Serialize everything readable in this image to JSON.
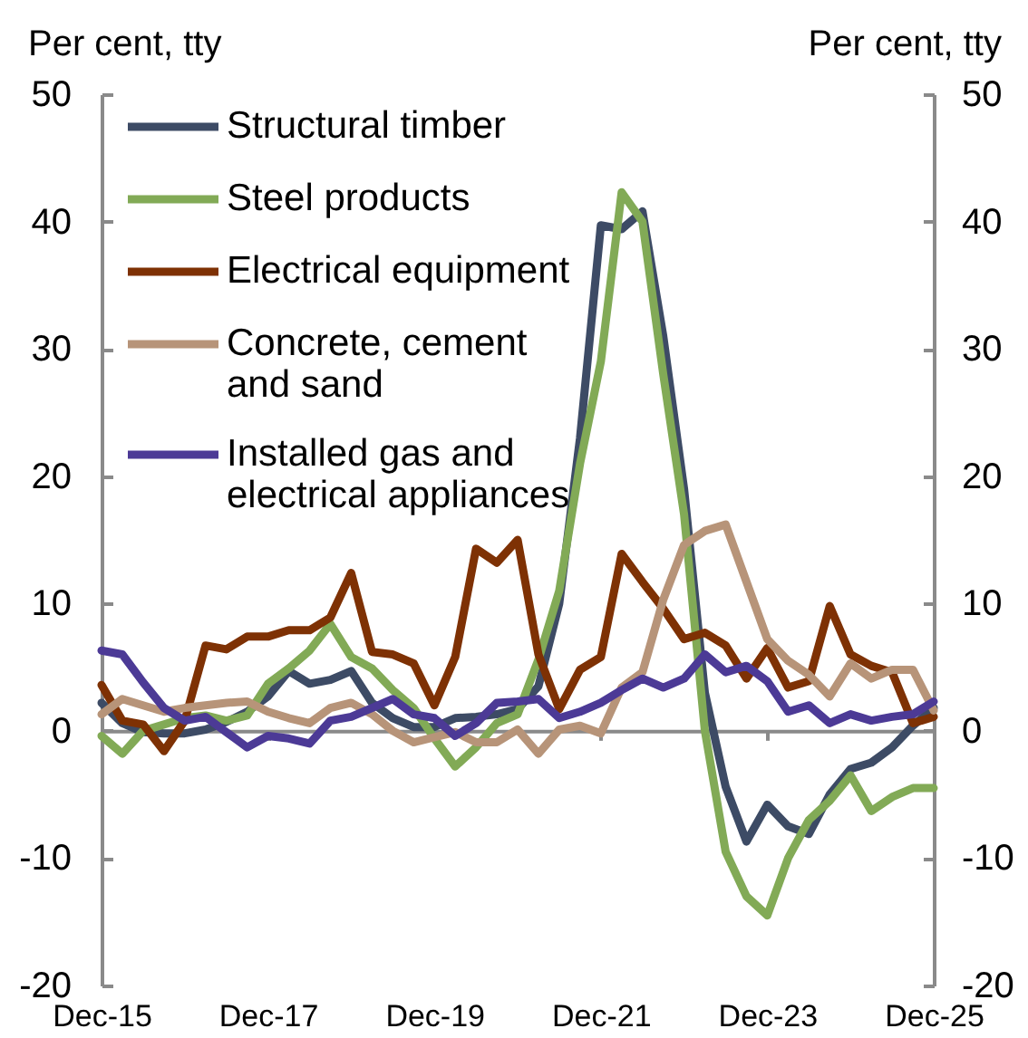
{
  "chart_data": {
    "type": "line",
    "ylabel": "Per cent, tty",
    "y2label": "Per cent, tty",
    "categories": [
      "Dec-15",
      null,
      null,
      null,
      null,
      null,
      null,
      null,
      "Dec-17",
      null,
      null,
      null,
      null,
      null,
      null,
      null,
      "Dec-19",
      null,
      null,
      null,
      null,
      null,
      null,
      null,
      "Dec-21",
      null,
      null,
      null,
      null,
      null,
      null,
      null,
      "Dec-23",
      null,
      null,
      null,
      null,
      null,
      null,
      null,
      "Dec-25"
    ],
    "series": [
      {
        "name": "Structural timber",
        "color": "#3d4b65",
        "values": [
          2.2,
          0.6,
          -0.1,
          -0.2,
          -0.2,
          0.1,
          0.7,
          1.5,
          2.7,
          4.7,
          3.7,
          4.0,
          4.7,
          2.2,
          1.0,
          0.3,
          0.3,
          1.0,
          1.1,
          1.3,
          1.7,
          3.5,
          10,
          23,
          39.7,
          39.4,
          40.8,
          31,
          19,
          3,
          -4.4,
          -8.7,
          -5.8,
          -7.5,
          -8.1,
          -5.0,
          -3.0,
          -2.5,
          -1.3,
          0.4,
          1.8
        ]
      },
      {
        "name": "Steel products",
        "color": "#82aa56",
        "values": [
          -0.4,
          -1.8,
          0.0,
          0.5,
          1.0,
          1.2,
          0.8,
          1.2,
          3.7,
          4.9,
          6.3,
          8.4,
          5.8,
          4.9,
          3.2,
          1.8,
          -0.6,
          -2.8,
          -1.3,
          0.6,
          1.3,
          5.6,
          11,
          21,
          29,
          42.3,
          40,
          28,
          17,
          0,
          -9.5,
          -13,
          -14.5,
          -10,
          -7,
          -5.5,
          -3.5,
          -6.3,
          -5.2,
          -4.5,
          -4.5
        ]
      },
      {
        "name": "Electrical equipment",
        "color": "#7e3104",
        "values": [
          3.6,
          0.8,
          0.5,
          -1.6,
          0.8,
          6.7,
          6.4,
          7.4,
          7.4,
          7.9,
          7.9,
          8.9,
          12.4,
          6.2,
          6.0,
          5.3,
          2.0,
          5.8,
          14.3,
          13.2,
          15.0,
          6.0,
          1.7,
          4.8,
          5.8,
          13.9,
          11.7,
          9.6,
          7.2,
          7.7,
          6.7,
          4.1,
          6.5,
          3.4,
          3.9,
          9.8,
          6.0,
          5.1,
          4.6,
          0.6,
          1.1
        ]
      },
      {
        "name": "Concrete, cement and sand",
        "color": "#b79479",
        "values": [
          1.3,
          2.5,
          2.0,
          1.5,
          1.8,
          2.0,
          2.2,
          2.3,
          1.5,
          1.0,
          0.6,
          1.8,
          2.2,
          1.3,
          0.0,
          -0.9,
          -0.5,
          -0.1,
          -0.9,
          -0.9,
          0.1,
          -1.8,
          0.1,
          0.4,
          -0.2,
          3.4,
          4.6,
          10.3,
          14.6,
          15.7,
          16.2,
          11.7,
          7.2,
          5.5,
          4.4,
          2.7,
          5.3,
          4.1,
          4.8,
          4.8,
          1.6
        ]
      },
      {
        "name": "Installed gas and electrical appliances",
        "color": "#4c3a96",
        "values": [
          6.3,
          6.0,
          3.8,
          1.8,
          0.8,
          1.1,
          -0.1,
          -1.3,
          -0.4,
          -0.6,
          -1.0,
          0.8,
          1.1,
          1.8,
          2.5,
          1.3,
          1.0,
          -0.4,
          0.6,
          2.2,
          2.3,
          2.5,
          1.0,
          1.5,
          2.2,
          3.2,
          4.1,
          3.4,
          4.1,
          6.0,
          4.6,
          5.1,
          3.9,
          1.5,
          2.0,
          0.6,
          1.3,
          0.8,
          1.1,
          1.3,
          2.3
        ]
      }
    ],
    "ylim": [
      -20,
      50
    ],
    "yticks": [
      -20,
      -10,
      0,
      10,
      20,
      30,
      40,
      50
    ],
    "y2lim": [
      -20,
      50
    ],
    "y2ticks": [
      -20,
      -10,
      0,
      10,
      20,
      30,
      40,
      50
    ],
    "legend": "top left"
  }
}
